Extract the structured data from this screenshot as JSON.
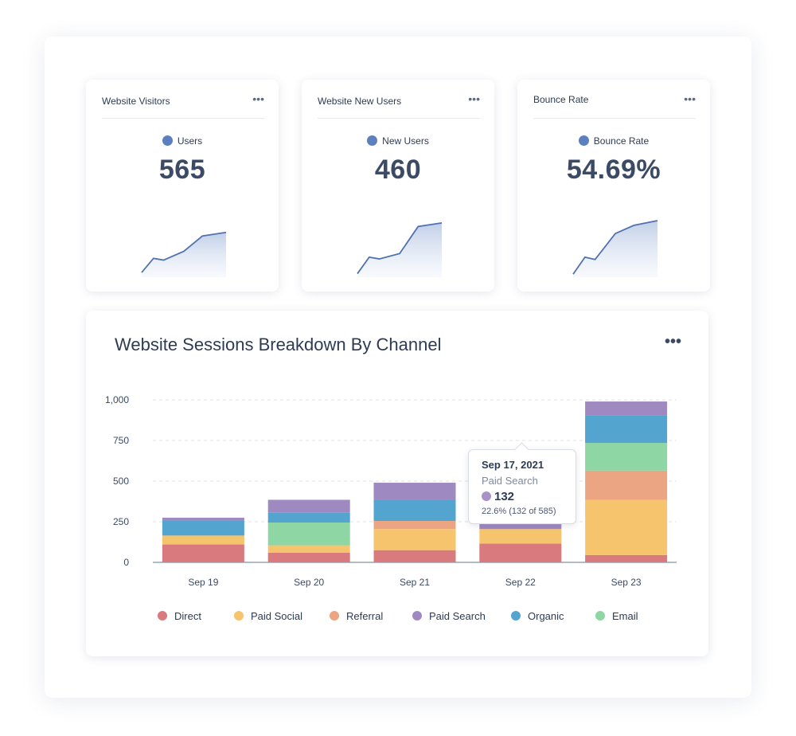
{
  "kpis": [
    {
      "title": "Website Visitors",
      "legend": "Users",
      "value": "565",
      "color": "#5b7fbf",
      "spark": [
        0.08,
        0.32,
        0.29,
        0.44,
        0.7,
        0.76
      ]
    },
    {
      "title": "Website New Users",
      "legend": "New Users",
      "value": "460",
      "color": "#5b7fbf",
      "spark": [
        0.06,
        0.34,
        0.31,
        0.4,
        0.86,
        0.92
      ]
    },
    {
      "title": "Bounce Rate",
      "legend": "Bounce Rate",
      "value": "54.69%",
      "color": "#5b7fbf",
      "spark": [
        0.05,
        0.34,
        0.3,
        0.74,
        0.88,
        0.96
      ]
    }
  ],
  "menu_glyph": "•••",
  "chart": {
    "title": "Website Sessions Breakdown By Channel",
    "menu": "•••",
    "tooltip": {
      "date": "Sep 17, 2021",
      "series": "Paid Search",
      "value": "132",
      "detail": "22.6% (132 of 585)",
      "color": "#a892c8"
    }
  },
  "chart_data": {
    "type": "bar",
    "stacked": true,
    "categories": [
      "Sep 19",
      "Sep 20",
      "Sep 21",
      "Sep 22",
      "Sep 23"
    ],
    "ylim": [
      0,
      1000
    ],
    "yticks": [
      0,
      250,
      500,
      750,
      1000
    ],
    "ytick_labels": [
      "0",
      "250",
      "500",
      "750",
      "1,000"
    ],
    "grid": true,
    "legend_position": "bottom",
    "series": [
      {
        "name": "Direct",
        "color": "#d97a7f",
        "values": [
          110,
          60,
          75,
          115,
          45
        ]
      },
      {
        "name": "Paid Social",
        "color": "#f7c46e",
        "values": [
          55,
          45,
          130,
          90,
          340
        ]
      },
      {
        "name": "Referral",
        "color": "#eba582",
        "values": [
          0,
          0,
          50,
          0,
          180
        ]
      },
      {
        "name": "Email",
        "color": "#8ed6a4",
        "values": [
          0,
          140,
          0,
          0,
          170
        ]
      },
      {
        "name": "Organic",
        "color": "#54a4d0",
        "values": [
          90,
          60,
          130,
          0,
          170
        ]
      },
      {
        "name": "Paid Search",
        "color": "#9f89c1",
        "values": [
          20,
          80,
          105,
          30,
          85
        ]
      }
    ]
  }
}
